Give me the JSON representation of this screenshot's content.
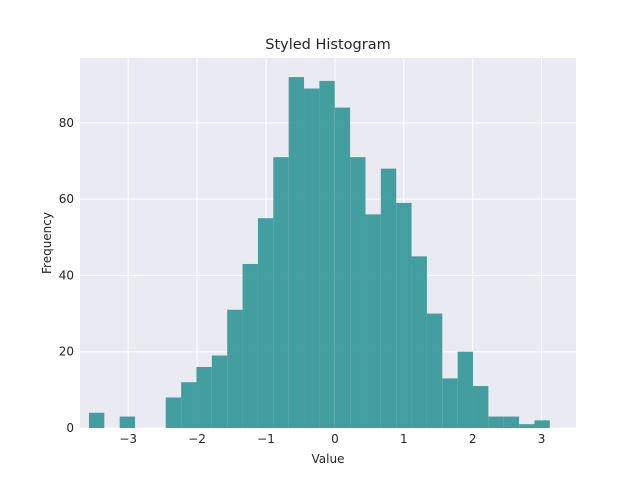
{
  "chart_data": {
    "type": "bar",
    "subtype": "histogram",
    "title": "Styled Histogram",
    "xlabel": "Value",
    "ylabel": "Frequency",
    "xlim": [
      -3.7,
      3.5
    ],
    "ylim": [
      0,
      97
    ],
    "xticks": [
      -3,
      -2,
      -1,
      0,
      1,
      2,
      3
    ],
    "xtick_labels": [
      "−3",
      "−2",
      "−1",
      "0",
      "1",
      "2",
      "3"
    ],
    "yticks": [
      0,
      20,
      40,
      60,
      80
    ],
    "yticklabels": [
      "0",
      "20",
      "40",
      "60",
      "80"
    ],
    "grid": true,
    "bin_width": 0.223,
    "bin_starts": [
      -3.57,
      -3.347,
      -3.124,
      -2.901,
      -2.678,
      -2.455,
      -2.232,
      -2.009,
      -1.786,
      -1.563,
      -1.34,
      -1.117,
      -0.894,
      -0.671,
      -0.448,
      -0.225,
      -0.002,
      0.221,
      0.444,
      0.667,
      0.89,
      1.113,
      1.336,
      1.559,
      1.782,
      2.005,
      2.228,
      2.451,
      2.674,
      2.897
    ],
    "values": [
      4,
      0,
      3,
      0,
      0,
      8,
      12,
      16,
      19,
      31,
      43,
      55,
      71,
      92,
      89,
      91,
      84,
      71,
      56,
      68,
      59,
      45,
      30,
      13,
      20,
      11,
      3,
      3,
      1,
      2
    ],
    "bar_color": "#3a9a9a",
    "background_color": "#eaeaf2",
    "grid_color": "#ffffff"
  }
}
